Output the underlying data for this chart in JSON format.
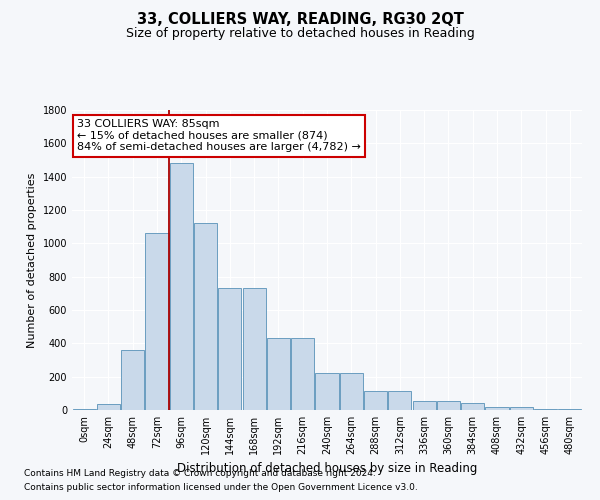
{
  "title": "33, COLLIERS WAY, READING, RG30 2QT",
  "subtitle": "Size of property relative to detached houses in Reading",
  "xlabel": "Distribution of detached houses by size in Reading",
  "ylabel": "Number of detached properties",
  "footnote1": "Contains HM Land Registry data © Crown copyright and database right 2024.",
  "footnote2": "Contains public sector information licensed under the Open Government Licence v3.0.",
  "bar_labels": [
    "0sqm",
    "24sqm",
    "48sqm",
    "72sqm",
    "96sqm",
    "120sqm",
    "144sqm",
    "168sqm",
    "192sqm",
    "216sqm",
    "240sqm",
    "264sqm",
    "288sqm",
    "312sqm",
    "336sqm",
    "360sqm",
    "384sqm",
    "408sqm",
    "432sqm",
    "456sqm",
    "480sqm"
  ],
  "bar_values": [
    5,
    35,
    360,
    1060,
    1480,
    1120,
    730,
    730,
    430,
    430,
    220,
    220,
    115,
    115,
    55,
    55,
    45,
    20,
    20,
    5,
    5
  ],
  "bar_color": "#c9d9ea",
  "bar_edge_color": "#6a9dc0",
  "vline_x": 3.5,
  "vline_color": "#aa0000",
  "annotation_text": "33 COLLIERS WAY: 85sqm\n← 15% of detached houses are smaller (874)\n84% of semi-detached houses are larger (4,782) →",
  "annotation_box_color": "#ffffff",
  "annotation_box_edge": "#cc0000",
  "ylim": [
    0,
    1800
  ],
  "yticks": [
    0,
    200,
    400,
    600,
    800,
    1000,
    1200,
    1400,
    1600,
    1800
  ],
  "background_color": "#f5f7fa",
  "plot_bg_color": "#f5f7fa",
  "grid_color": "#ffffff",
  "title_fontsize": 10.5,
  "subtitle_fontsize": 9,
  "tick_fontsize": 7,
  "ylabel_fontsize": 8,
  "xlabel_fontsize": 8.5,
  "annotation_fontsize": 8,
  "footnote_fontsize": 6.5
}
